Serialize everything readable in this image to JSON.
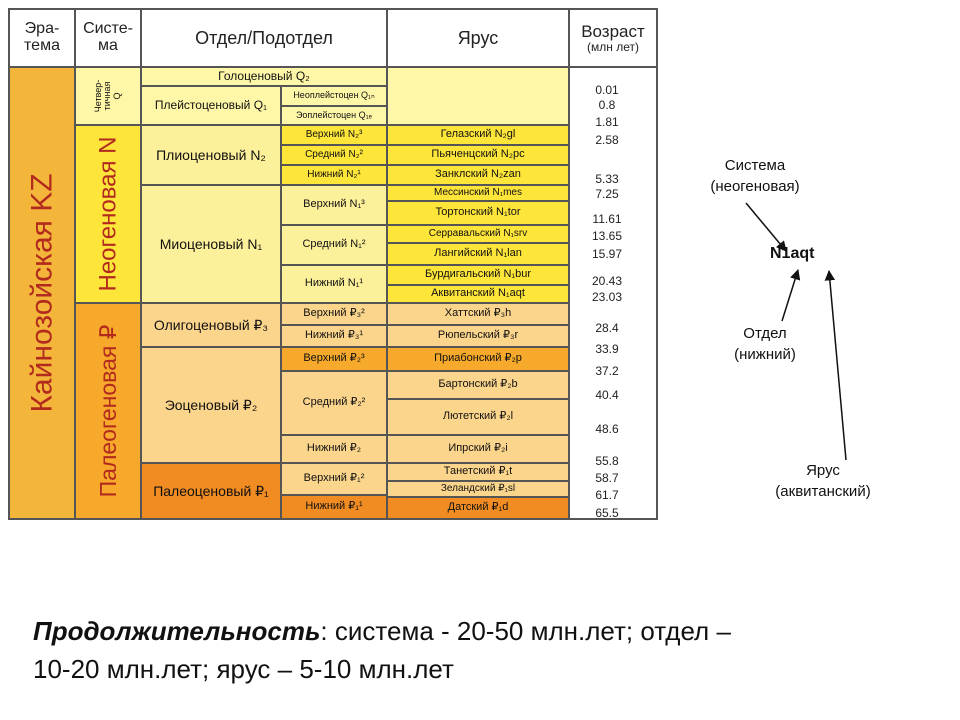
{
  "headers": {
    "eratema": "Эра-\nтема",
    "sistema": "Систе-\nма",
    "otdel": "Отдел/Подотдел",
    "yarus": "Ярус",
    "vozrast": "Возраст",
    "vozrast_unit": "(млн лет)"
  },
  "table": {
    "era": "Кайнозойская KZ",
    "systems": {
      "quaternary": "Четвер-\nтичная\nQ",
      "neogene": "Неогеновая N",
      "paleogene": "Палеогеновая ₽"
    },
    "series": {
      "holocene": "Голоценовый Q₂",
      "pleistocene": "Плейстоценовый Q₁",
      "pliocene": "Плиоценовый N₂",
      "miocene": "Миоценовый N₁",
      "oligocene": "Олигоценовый ₽₃",
      "eocene": "Эоценовый ₽₂",
      "paleocene": "Палеоценовый ₽₁"
    },
    "subseries": {
      "neopleist": "Неоплейстоцен Q₁ₙ",
      "eopleist": "Эоплейстоцен Q₁ₑ",
      "plio_upper": "Верхний N₂³",
      "plio_middle": "Средний N₂²",
      "plio_lower": "Нижний N₂¹",
      "mio_upper": "Верхний N₁³",
      "mio_middle": "Средний N₁²",
      "mio_lower": "Нижний N₁¹",
      "oli_upper": "Верхний ₽₃²",
      "oli_lower": "Нижний ₽₃¹",
      "eo_upper": "Верхний ₽₂³",
      "eo_middle": "Средний ₽₂²",
      "eo_lower": "Нижний ₽₂",
      "pal_upper": "Верхний ₽₁²",
      "pal_lower": "Нижний ₽₁¹"
    },
    "stages": {
      "gelasian": "Гелазский N₂gl",
      "piacenzian": "Пьяченцский N₂pc",
      "zanclean": "Занклский N₂zan",
      "messinian": "Мессинский N₁mes",
      "tortonian": "Тортонский N₁tor",
      "serravallian": "Серравальский N₁srv",
      "langhian": "Лангийский N₁lan",
      "burdigalian": "Бурдигальский N₁bur",
      "aquitanian": "Аквитанский N₁aqt",
      "chattian": "Хаттский ₽₃h",
      "rupelian": "Рюпельский ₽₃r",
      "priabonian": "Приабонский ₽₂p",
      "bartonian": "Бартонский ₽₂b",
      "lutetian": "Лютетский ₽₂l",
      "ypresian": "Ипрский ₽₂i",
      "thanetian": "Танетский ₽₁t",
      "selandian": "Зеландский ₽₁sl",
      "danian": "Датский ₽₁d"
    },
    "ages": [
      "0.01",
      "0.8",
      "1.81",
      "2.58",
      "5.33",
      "7.25",
      "11.61",
      "13.65",
      "15.97",
      "20.43",
      "23.03",
      "28.4",
      "33.9",
      "37.2",
      "40.4",
      "48.6",
      "55.8",
      "58.7",
      "61.7",
      "65.5"
    ]
  },
  "annotations": {
    "code": "N1aqt",
    "system_label": "Система",
    "system_value": "(неогеновая)",
    "series_label": "Отдел",
    "series_value": "(нижний)",
    "stage_label": "Ярус",
    "stage_value": "(аквитанский)"
  },
  "bottom": {
    "term": "Продолжительность",
    "line1_rest": ": система - 20-50 млн.лет; отдел –",
    "line2": "10-20 млн.лет; ярус – 5-10 млн.лет"
  },
  "colors": {
    "quaternary": "#fff7a8",
    "neogene": "#fde53a",
    "neogene_light": "#fdf09a",
    "paleogene": "#f6a92a",
    "paleogene_light": "#fbd58c",
    "paleocene_dark": "#f08c22",
    "era": "#f3b63a",
    "era_text": "#b22a1e",
    "stage_green_text": "#2a2a6a"
  }
}
